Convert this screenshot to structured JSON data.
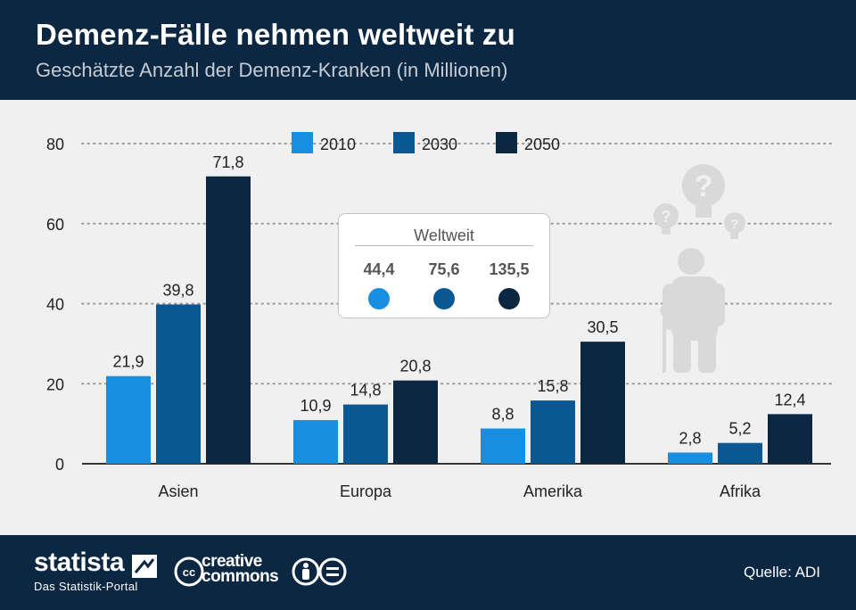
{
  "title": "Demenz-Fälle nehmen weltweit zu",
  "subtitle": "Geschätzte Anzahl der Demenz-Kranken (in Millionen)",
  "colors": {
    "s2010": "#168fe1",
    "s2030": "#0b5792",
    "s2050": "#0c2742",
    "header": "#0c2742"
  },
  "chart_data": {
    "type": "bar",
    "categories": [
      "Asien",
      "Europa",
      "Amerika",
      "Afrika"
    ],
    "series": [
      {
        "name": "2010",
        "values": [
          21.9,
          10.9,
          8.8,
          2.8
        ],
        "labels": [
          "21,9",
          "10,9",
          "8,8",
          "2,8"
        ]
      },
      {
        "name": "2030",
        "values": [
          39.8,
          14.8,
          15.8,
          5.2
        ],
        "labels": [
          "39,8",
          "14,8",
          "15,8",
          "5,2"
        ]
      },
      {
        "name": "2050",
        "values": [
          71.8,
          20.8,
          30.5,
          12.4
        ],
        "labels": [
          "71,8",
          "20,8",
          "30,5",
          "12,4"
        ]
      }
    ],
    "ylim": [
      0,
      80
    ],
    "yticks": [
      0,
      20,
      40,
      60,
      80
    ],
    "grid": true,
    "legend": "top-center"
  },
  "weltweit": {
    "title": "Weltweit",
    "values": [
      "44,4",
      "75,6",
      "135,5"
    ]
  },
  "footer": {
    "brand": "statista",
    "tagline": "Das Statistik-Portal",
    "cc_line1": "creative",
    "cc_line2": "commons",
    "source": "Quelle: ADI"
  }
}
